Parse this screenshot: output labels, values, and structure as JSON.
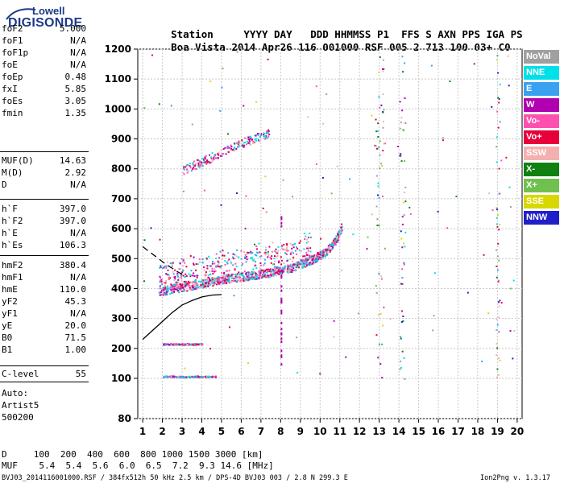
{
  "logo": {
    "line1": "Lowell",
    "line2": "DIGISONDE"
  },
  "header": {
    "labels": [
      "Station",
      "YYYY",
      "DAY",
      "DDD",
      "HHMMSS",
      "P1",
      "FFS",
      "S",
      "AXN",
      "PPS",
      "IGA",
      "PS"
    ],
    "values": [
      "Boa Vista",
      "2014",
      "Apr26",
      "116",
      "001000",
      "RSF",
      "005",
      "2",
      "713",
      "100",
      "03+",
      "C0"
    ]
  },
  "params": {
    "group1": [
      {
        "label": "foF2",
        "value": "5.000"
      },
      {
        "label": "foF1",
        "value": "N/A"
      },
      {
        "label": "foF1p",
        "value": "N/A"
      },
      {
        "label": "foE",
        "value": "N/A"
      },
      {
        "label": "foEp",
        "value": "0.48"
      },
      {
        "label": "fxI",
        "value": "5.85"
      },
      {
        "label": "foEs",
        "value": "3.05"
      },
      {
        "label": "fmin",
        "value": "1.35"
      }
    ],
    "group2": [
      {
        "label": "MUF(D)",
        "value": "14.63"
      },
      {
        "label": "M(D)",
        "value": "2.92"
      },
      {
        "label": "D",
        "value": "N/A"
      }
    ],
    "group3": [
      {
        "label": "h`F",
        "value": "397.0"
      },
      {
        "label": "h`F2",
        "value": "397.0"
      },
      {
        "label": "h`E",
        "value": "N/A"
      },
      {
        "label": "h`Es",
        "value": "106.3"
      }
    ],
    "group4": [
      {
        "label": "hmF2",
        "value": "380.4"
      },
      {
        "label": "hmF1",
        "value": "N/A"
      },
      {
        "label": "hmE",
        "value": "110.0"
      },
      {
        "label": "yF2",
        "value": "45.3"
      },
      {
        "label": "yF1",
        "value": "N/A"
      },
      {
        "label": "yE",
        "value": "20.0"
      },
      {
        "label": "B0",
        "value": "71.5"
      },
      {
        "label": "B1",
        "value": "1.00"
      }
    ],
    "group5": [
      {
        "label": "C-level",
        "value": "55"
      }
    ],
    "auto": [
      "Auto:",
      "Artist5",
      "500200"
    ]
  },
  "legend": [
    {
      "label": "NoVal",
      "color": "#a0a0a0"
    },
    {
      "label": "NNE",
      "color": "#00e0e8"
    },
    {
      "label": "E",
      "color": "#3aa0f0"
    },
    {
      "label": "W",
      "color": "#b000b0"
    },
    {
      "label": "Vo-",
      "color": "#ff50b0"
    },
    {
      "label": "Vo+",
      "color": "#e8003a"
    },
    {
      "label": "SSW",
      "color": "#f4b0b0"
    },
    {
      "label": "X-",
      "color": "#108010"
    },
    {
      "label": "X+",
      "color": "#70c050"
    },
    {
      "label": "SSE",
      "color": "#d8d800"
    },
    {
      "label": "NNW",
      "color": "#2020c8"
    }
  ],
  "footer": {
    "d_row": "D     100  200  400  600  800 1000 1500 3000 [km]",
    "muf_row": "MUF    5.4  5.4  5.6  6.0  6.5  7.2  9.3 14.6 [MHz]",
    "info": "BVJ03_2014116001000.RSF / 384fx512h 50 kHz 2.5 km / DPS-4D BVJ03 003 / 2.8 N 299.3 E",
    "version": "Ion2Png v. 1.3.17"
  },
  "chart_data": {
    "type": "scatter",
    "xlim": [
      1,
      20
    ],
    "ylim": [
      80,
      1200
    ],
    "xticks": [
      1,
      2,
      3,
      4,
      5,
      6,
      7,
      8,
      9,
      10,
      11,
      12,
      13,
      14,
      15,
      16,
      17,
      18,
      19,
      20
    ],
    "yticks": [
      80,
      100,
      200,
      300,
      400,
      500,
      600,
      700,
      800,
      900,
      1000,
      1100,
      1200
    ],
    "grid": true,
    "xlabel": "",
    "ylabel": "",
    "trace_bands": [
      {
        "name": "F2 trace",
        "x": [
          1.8,
          2.5,
          3.5,
          4.5,
          5.5,
          6.5,
          7.5,
          8.5,
          9.5,
          10.3,
          10.8,
          11.1
        ],
        "y": [
          385,
          395,
          405,
          420,
          430,
          440,
          450,
          465,
          490,
          520,
          560,
          605
        ]
      },
      {
        "name": "F2 second hop",
        "x": [
          3.0,
          4.0,
          5.0,
          6.0,
          7.0,
          7.4
        ],
        "y": [
          790,
          820,
          850,
          880,
          905,
          915
        ]
      },
      {
        "name": "Es",
        "x": [
          2.0,
          2.5,
          3.0,
          3.5,
          4.0,
          4.7
        ],
        "y": [
          107,
          107,
          106,
          107,
          107,
          107
        ]
      },
      {
        "name": "Es 2nd hop",
        "x": [
          2.0,
          2.5,
          3.0,
          3.5,
          4.0
        ],
        "y": [
          215,
          215,
          215,
          215,
          215
        ]
      }
    ],
    "model_profile": {
      "x": [
        1.0,
        1.5,
        2.0,
        2.5,
        3.0,
        3.5,
        4.0,
        4.5,
        5.0
      ],
      "y": [
        230,
        260,
        290,
        320,
        345,
        360,
        372,
        378,
        380
      ]
    },
    "model_dashed": {
      "x": [
        1.0,
        1.6,
        2.2,
        2.8,
        3.2
      ],
      "y": [
        540,
        510,
        480,
        455,
        440
      ]
    }
  }
}
